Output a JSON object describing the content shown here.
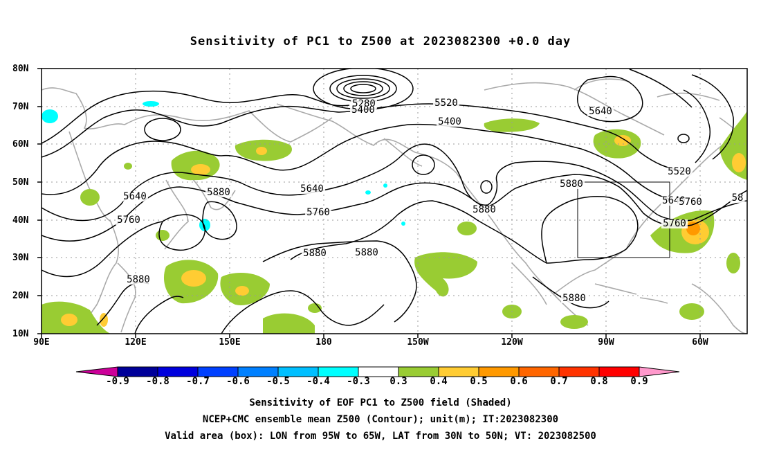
{
  "title": "Sensitivity of PC1 to Z500 at 2023082300 +0.0 day",
  "lat_labels": [
    "80N",
    "70N",
    "60N",
    "50N",
    "40N",
    "30N",
    "20N",
    "10N"
  ],
  "lon_labels": [
    "90E",
    "120E",
    "150E",
    "180",
    "150W",
    "120W",
    "90W",
    "60W"
  ],
  "contour_labels": [
    "5280",
    "5400",
    "5520",
    "5640",
    "5400",
    "5520",
    "5640",
    "5760",
    "5880",
    "5640",
    "5760",
    "5880",
    "5640",
    "5760",
    "5880",
    "5880",
    "5880",
    "5880",
    "5760",
    "5880",
    "58"
  ],
  "colorbar": {
    "labels": [
      "-0.9",
      "-0.8",
      "-0.7",
      "-0.6",
      "-0.5",
      "-0.4",
      "-0.3",
      "0.3",
      "0.4",
      "0.5",
      "0.6",
      "0.7",
      "0.8",
      "0.9"
    ],
    "colors": [
      "#000099",
      "#0000dd",
      "#0040ff",
      "#0080ff",
      "#00bfff",
      "#00ffff",
      "#ffffff",
      "#99cc33",
      "#ffcc33",
      "#ff9900",
      "#ff6600",
      "#ff3300",
      "#ff0000"
    ],
    "low_extend_color": "#cc0099",
    "high_extend_color": "#ff99cc"
  },
  "captions": {
    "line1": "Sensitivity of EOF PC1 to Z500 field (Shaded)",
    "line2": "NCEP+CMC ensemble mean Z500 (Contour); unit(m); IT:2023082300",
    "line3": "Valid area (box): LON from 95W to 65W, LAT from 30N to 50N; VT: 2023082500"
  }
}
